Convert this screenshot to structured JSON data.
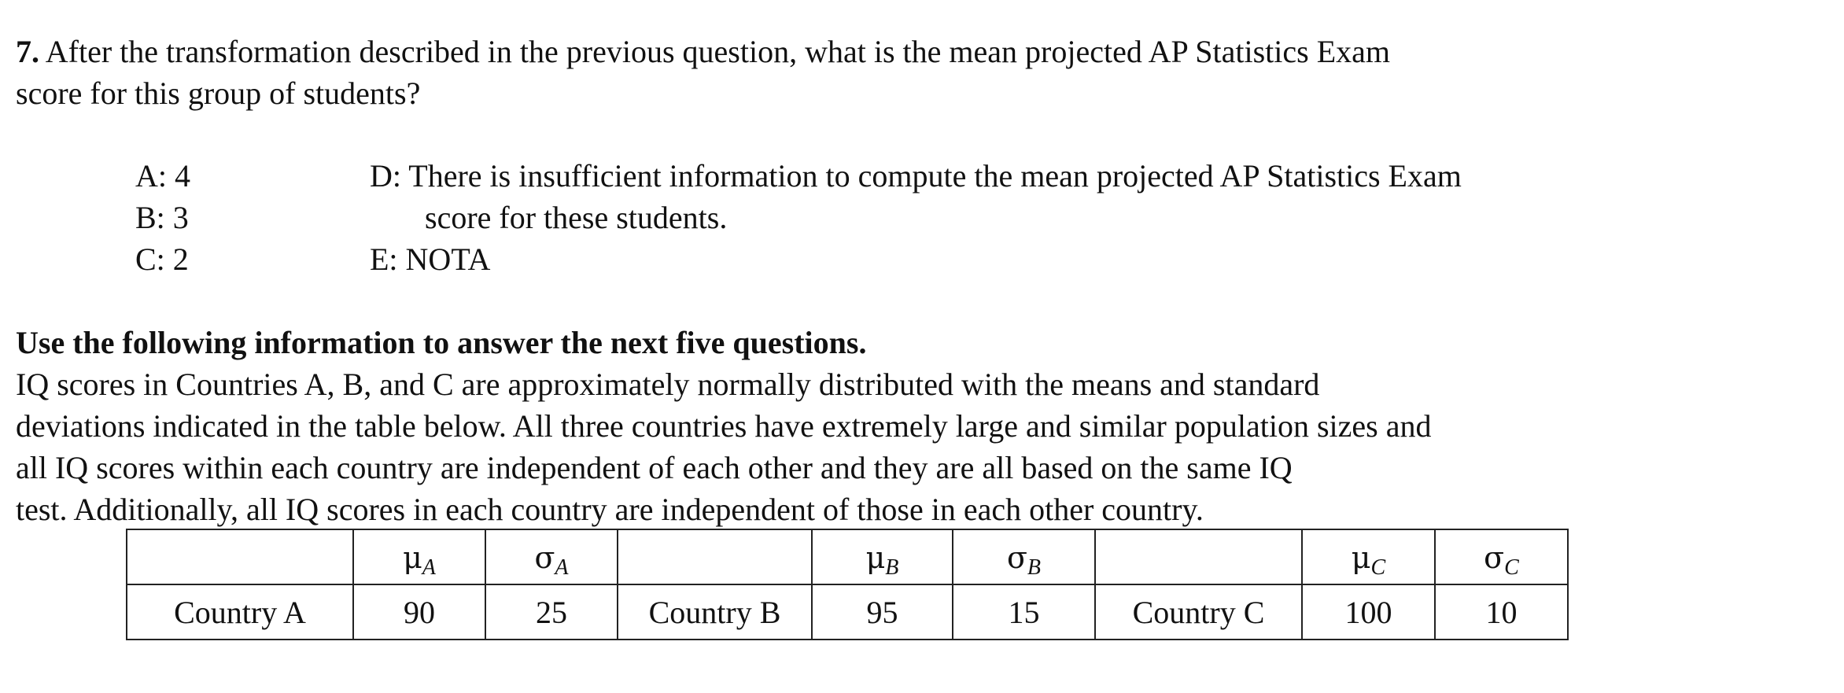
{
  "question": {
    "number": "7.",
    "line1": "After the transformation described in the previous question, what is the mean projected AP Statistics Exam",
    "line2": "score for this group of students?"
  },
  "choices": {
    "a": "A:  4",
    "b": "B:  3",
    "c": "C:  2",
    "d_line1": "D:  There is insufficient information to compute the mean projected AP Statistics Exam",
    "d_line2": "score for these students.",
    "e": "E:  NOTA"
  },
  "instructions": "Use the following information to answer the next five questions.",
  "paragraph": {
    "line1": "IQ scores in Countries A, B, and C are approximately normally distributed with the means and standard",
    "line2": "deviations indicated in the table below.  All three countries have extremely large and similar population sizes and",
    "line3": "all IQ scores within each country are independent of each other and they are all based on the same IQ",
    "line4": "test.  Additionally, all IQ scores in each country are independent of those in each other country."
  },
  "table": {
    "headers": {
      "mu_symbol": "μ",
      "sigma_symbol": "σ",
      "sub_a": "A",
      "sub_b": "B",
      "sub_c": "C"
    },
    "row": {
      "country_a": "Country A",
      "mean_a": "90",
      "sd_a": "25",
      "country_b": "Country B",
      "mean_b": "95",
      "sd_b": "15",
      "country_c": "Country C",
      "mean_c": "100",
      "sd_c": "10"
    }
  }
}
